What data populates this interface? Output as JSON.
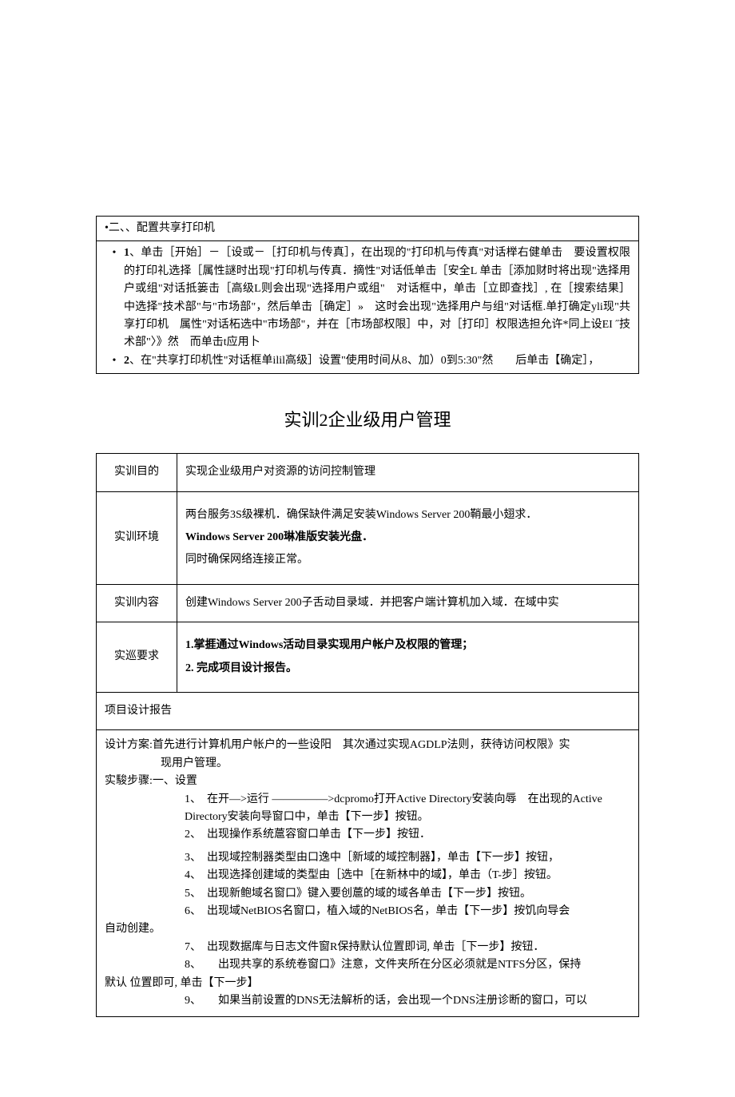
{
  "box1": {
    "header": "•二、、配置共享打印机",
    "item1_lead": "1",
    "item1_text": "、单击［开始］－［设或－［打印机与传真］，在出现的\"打印机与传真\"对话榉右健单击　要设置权限的打印礼选择［属性謎时出现\"打印机与传真．摘性\"对话低单击［安全L 单击［添加财时将出现\"选择用户或组\"对话抵篓击［高级L则会出现\"选择用户或组\"　对话框中，单击［立即查找］, 在［搜索结果］中选择\"技术部\"与\"市场部\"，然后单击［确定］»　这时会出现\"选择用户与组\"对话框.单打确定yli现\"共享打印机　属性\"对话柘选中\"市场部\"，并在［市场部权限］中，对［打印］权限选担允许*同上设EI ˝技术部\"〉》然　而单击t应用卜",
    "item2_lead": "2",
    "item2_text": "、在\"共享打印机性\"对话框单ilil高级］设置\"使用时间从8、加）0到5:30\"然　　后单击【确定］，"
  },
  "title": "实训2企业级用户管理",
  "table": {
    "r1_label": "实训目的",
    "r1_value": "实现企业级用户对资源的访问控制管理",
    "r2_label": "实训环境",
    "r2_line1": "两台服务3S级裸机．确保缺件满足安装Windows Server 200鞘最小翅求．",
    "r2_line2": "Windows Server 200琳准版安装光盘．",
    "r2_line3": "同时确保网络连接正常。",
    "r3_label": "实训内容",
    "r3_value": "创建Windows Server 200子舌动目录域．并把客户端计算机加入域．在域中实",
    "r4_label": "实巡要求",
    "r4_line1": "1.掌捱通过Windows活动目录实现用户帐户及权限的管理；",
    "r4_line2": "2. 完成项目设计报告。",
    "report_header": "项目设计报告",
    "design_plan": "设计方案:首先进行计算机用户帐户的一些设阳　其次通过实现AGDLP法则，获待访问权限》实现用户管理。",
    "steps_header": "实駿步骤:一、设置",
    "step1": "1、　在开—>运行 ―――――>dcpromo打开Active Directory安装向辱　在出现的Active Directory安装向导窗口中，单击【下一步】按钮。",
    "step2": "2、　出现操作系统蔰容窗口单击【下一步】按钮．",
    "step3": "3、　出现域控制器类型由口逸中［新域的域控制器】，单击【下一步】按钮，",
    "step4": "4、　出现选择创建域的类型由［选中［在新林中的域】，单击（T-步］按钮。",
    "step5": "5、　出现新鲍域名窗口》键入要创蔰的域的域各单击【下一步】按钮。",
    "step6": "6、　出现域NetBIOS名窗口，植入域的NetBIOS名，单击【下一步】按饥向导会自动创建。",
    "step7": "7、　出现数据库与日志文件窗R保持默认位置即词, 单击［下一步】按钮．",
    "step8": "8、　　出现共享的系统卷窗口》注意，文件夹所在分区必须就是NTFS分区，保持默认 位置即可, 单击【下一步】",
    "step9": "9、　　如果当前设置的DNS无法解析的话，会出现一个DNS注册诊断的窗口，可以"
  }
}
